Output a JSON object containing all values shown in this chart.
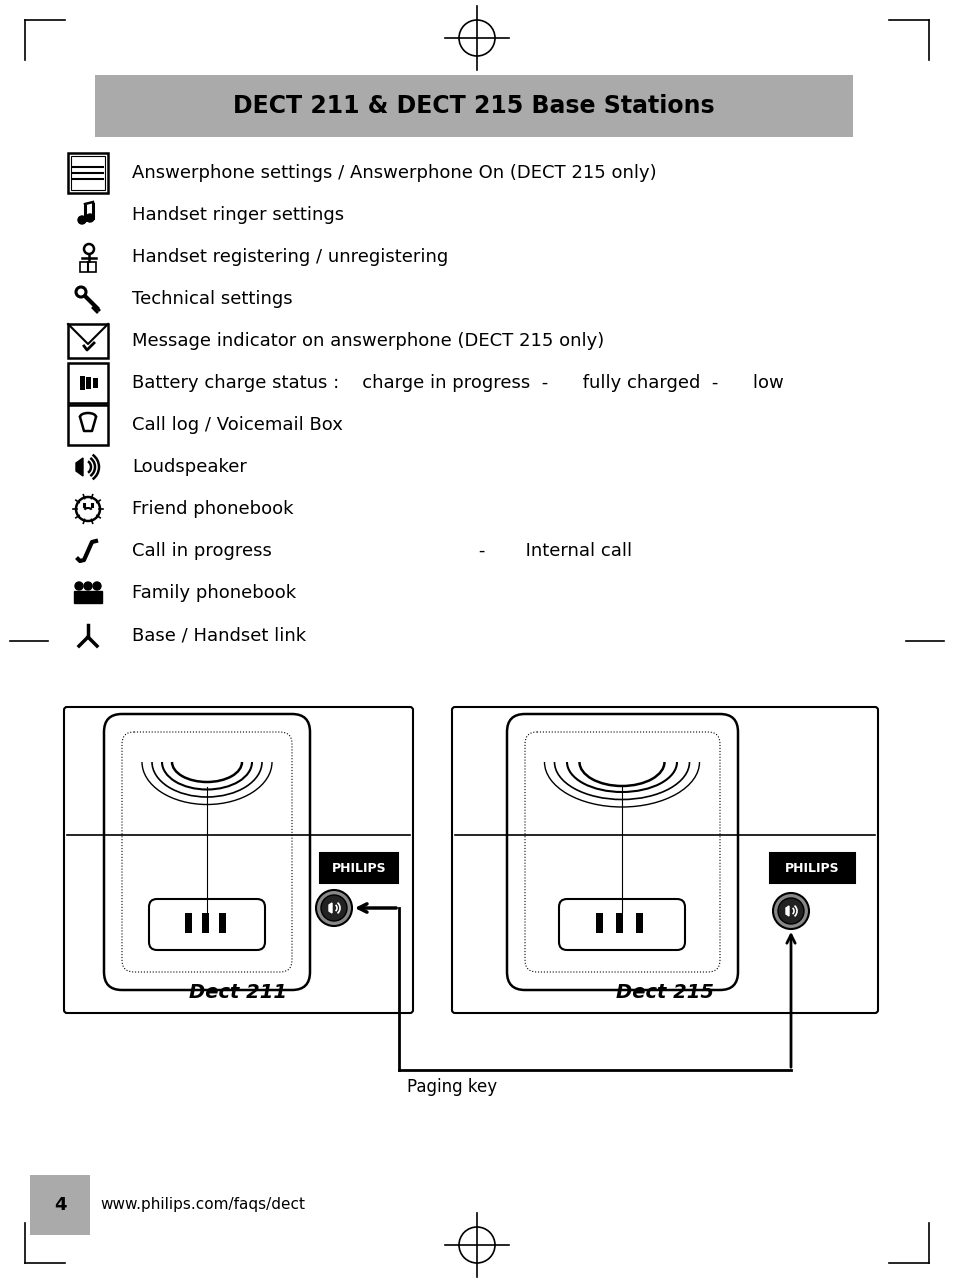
{
  "title": "DECT 211 & DECT 215 Base Stations",
  "title_bg": "#aaaaaa",
  "page_bg": "#ffffff",
  "items": [
    {
      "text": "Answerphone settings / Answerphone On (DECT 215 only)"
    },
    {
      "text": "Handset ringer settings"
    },
    {
      "text": "Handset registering / unregistering"
    },
    {
      "text": "Technical settings"
    },
    {
      "text": "Message indicator on answerphone (DECT 215 only)"
    },
    {
      "text": "Battery charge status :    charge in progress  -      fully charged  -      low"
    },
    {
      "text": "Call log / Voicemail Box"
    },
    {
      "text": "Loudspeaker"
    },
    {
      "text": "Friend phonebook"
    },
    {
      "text": "Call in progress                                    -       Internal call"
    },
    {
      "text": "Family phonebook"
    },
    {
      "text": "Base / Handset link"
    }
  ],
  "footer_text": "www.philips.com/faqs/dect",
  "page_number": "4",
  "dect211_label": "Dect 211",
  "dect215_label": "Dect 215",
  "paging_key_label": "Paging key",
  "philips_label": "PHILIPS"
}
